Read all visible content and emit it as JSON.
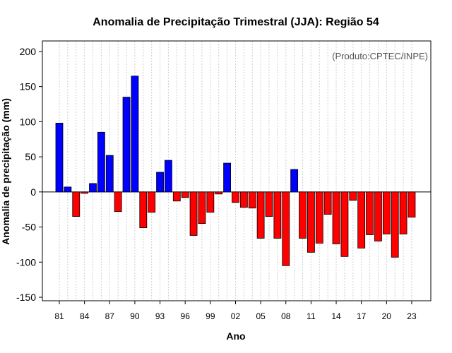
{
  "chart_data": {
    "type": "bar",
    "title": "Anomalia de Precipitação Trimestral (JJA): Região 54",
    "xlabel": "Ano",
    "ylabel": "Anomalia de precipitação (mm)",
    "annotation": "(Produto:CPTEC/INPE)",
    "ylim": [
      -155,
      215
    ],
    "yticks": [
      -150,
      -100,
      -50,
      0,
      50,
      100,
      150,
      200
    ],
    "xtick_labels": [
      "81",
      "84",
      "87",
      "90",
      "93",
      "96",
      "99",
      "02",
      "05",
      "08",
      "11",
      "14",
      "17",
      "20",
      "23"
    ],
    "grid": true,
    "positive_color": "#0000ff",
    "negative_color": "#ff0000",
    "categories": [
      "1981",
      "1982",
      "1983",
      "1984",
      "1985",
      "1986",
      "1987",
      "1988",
      "1989",
      "1990",
      "1991",
      "1992",
      "1993",
      "1994",
      "1995",
      "1996",
      "1997",
      "1998",
      "1999",
      "2000",
      "2001",
      "2002",
      "2003",
      "2004",
      "2005",
      "2006",
      "2007",
      "2008",
      "2009",
      "2010",
      "2011",
      "2012",
      "2013",
      "2014",
      "2015",
      "2016",
      "2017",
      "2018",
      "2019",
      "2020",
      "2021",
      "2022",
      "2023"
    ],
    "values": [
      98,
      7,
      -35,
      -2,
      12,
      85,
      52,
      -28,
      135,
      165,
      -51,
      -29,
      28,
      45,
      -13,
      -8,
      -62,
      -45,
      -29,
      -3,
      41,
      -15,
      -22,
      -23,
      -66,
      -35,
      -66,
      -105,
      32,
      -66,
      -86,
      -73,
      -32,
      -74,
      -92,
      -12,
      -80,
      -61,
      -70,
      -60,
      -93,
      -60,
      -36
    ]
  }
}
